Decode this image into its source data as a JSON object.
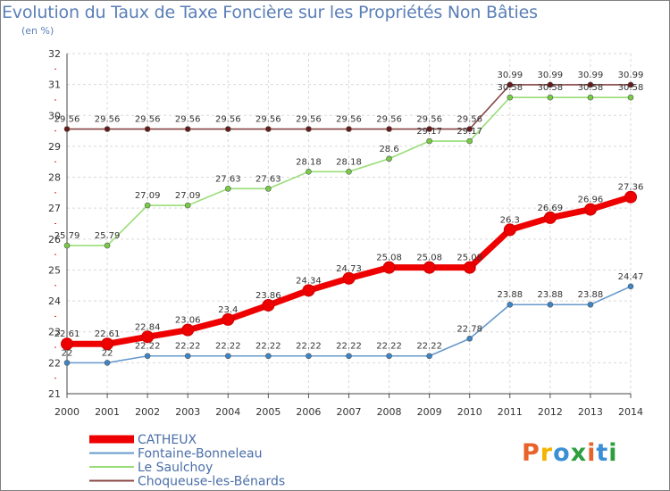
{
  "header": {
    "title": "Evolution du Taux de Taxe Foncière sur les Propriétés Non Bâties",
    "subtitle": "(en %)"
  },
  "brand": {
    "text": "Proxiti",
    "colors": [
      "#e8632b",
      "#f2b400",
      "#3a8fd6",
      "#2e9e3e",
      "#e8632b",
      "#3a8fd6",
      "#2e9e3e"
    ]
  },
  "chart_data": {
    "type": "line",
    "title": "Evolution du Taux de Taxe Foncière sur les Propriétés Non Bâties",
    "ylabel": "(en %)",
    "xlabel": "",
    "x": [
      "2000",
      "2001",
      "2002",
      "2003",
      "2004",
      "2005",
      "2006",
      "2007",
      "2008",
      "2009",
      "2010",
      "2011",
      "2012",
      "2013",
      "2014"
    ],
    "ylim": [
      21,
      32
    ],
    "yticks": [
      21,
      22,
      23,
      24,
      25,
      26,
      27,
      28,
      29,
      30,
      31,
      32
    ],
    "grid": true,
    "legend_position": "bottom-left",
    "series": [
      {
        "name": "CATHEUX",
        "color": "#ee0000",
        "values": [
          22.61,
          22.61,
          22.84,
          23.06,
          23.4,
          23.86,
          24.34,
          24.73,
          25.08,
          25.08,
          25.08,
          26.3,
          26.69,
          26.96,
          27.36
        ],
        "labels": [
          "22.61",
          "22.61",
          "22.84",
          "23.06",
          "23.4",
          "23.86",
          "24.34",
          "24.73",
          "25.08",
          "25.08",
          "25.08",
          "26.3",
          "26.69",
          "26.96",
          "27.36"
        ]
      },
      {
        "name": "Fontaine-Bonneleau",
        "color": "#6699cc",
        "marker_color": "#3d85c6",
        "values": [
          22,
          22,
          22.22,
          22.22,
          22.22,
          22.22,
          22.22,
          22.22,
          22.22,
          22.22,
          22.78,
          23.88,
          23.88,
          23.88,
          24.47
        ],
        "labels": [
          "22",
          "22",
          "22.22",
          "22.22",
          "22.22",
          "22.22",
          "22.22",
          "22.22",
          "22.22",
          "22.22",
          "22.78",
          "23.88",
          "23.88",
          "23.88",
          "24.47"
        ]
      },
      {
        "name": "Le Saulchoy",
        "color": "#99dd77",
        "marker_color": "#77cc44",
        "values": [
          25.79,
          25.79,
          27.09,
          27.09,
          27.63,
          27.63,
          28.18,
          28.18,
          28.6,
          29.17,
          29.17,
          30.58,
          30.58,
          30.58,
          30.58
        ],
        "labels": [
          "25.79",
          "25.79",
          "27.09",
          "27.09",
          "27.63",
          "27.63",
          "28.18",
          "28.18",
          "28.6",
          "29.17",
          "29.17",
          "30.58",
          "30.58",
          "30.58",
          "30.58"
        ]
      },
      {
        "name": "Choqueuse-les-Bénards",
        "color": "#884444",
        "marker_color": "#661a1a",
        "values": [
          29.56,
          29.56,
          29.56,
          29.56,
          29.56,
          29.56,
          29.56,
          29.56,
          29.56,
          29.56,
          29.56,
          30.99,
          30.99,
          30.99,
          30.99
        ],
        "labels": [
          "29.56",
          "29.56",
          "29.56",
          "29.56",
          "29.56",
          "29.56",
          "29.56",
          "29.56",
          "29.56",
          "29.56",
          "29.56",
          "30.99",
          "30.99",
          "30.99",
          "30.99"
        ]
      }
    ]
  }
}
